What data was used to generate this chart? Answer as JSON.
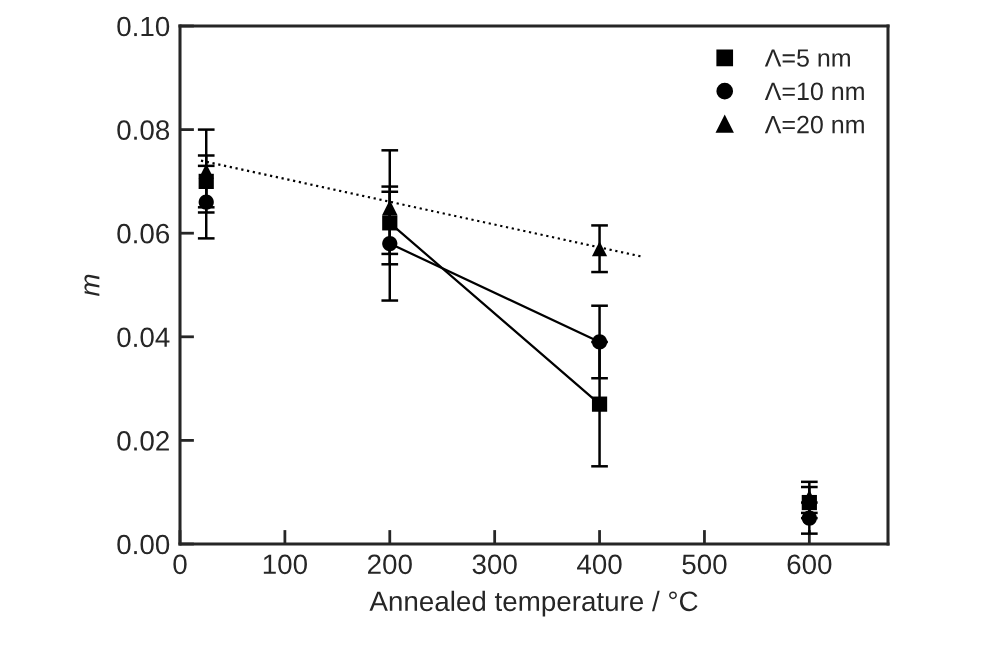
{
  "chart_data": {
    "type": "scatter",
    "xlabel": "Annealed temperature / °C",
    "ylabel": "m",
    "xlim": [
      0,
      675
    ],
    "ylim": [
      0,
      0.1
    ],
    "xticks": [
      0,
      100,
      200,
      300,
      400,
      500,
      600
    ],
    "yticks": [
      {
        "value": 0,
        "label": "0.00"
      },
      {
        "value": 0.02,
        "label": "0.02"
      },
      {
        "value": 0.04,
        "label": "0.04"
      },
      {
        "value": 0.06,
        "label": "0.06"
      },
      {
        "value": 0.08,
        "label": "0.08"
      },
      {
        "value": 0.1,
        "label": "0.10"
      }
    ],
    "grid": false,
    "legend": "top right",
    "series": [
      {
        "name": "Λ=5 nm",
        "marker": "square",
        "color": "#000000",
        "x": [
          25,
          200,
          400,
          600
        ],
        "values": [
          0.07,
          0.062,
          0.027,
          0.008
        ],
        "errors": [
          0.005,
          0.006,
          0.012,
          0.003
        ]
      },
      {
        "name": "Λ=10 nm",
        "marker": "circle",
        "color": "#000000",
        "x": [
          25,
          200,
          400,
          600
        ],
        "values": [
          0.066,
          0.058,
          0.039,
          0.005
        ],
        "errors": [
          0.007,
          0.011,
          0.007,
          0.003
        ]
      },
      {
        "name": "Λ=20 nm",
        "marker": "triangle",
        "color": "#000000",
        "x": [
          25,
          200,
          400,
          600
        ],
        "values": [
          0.072,
          0.065,
          0.057,
          0.009
        ],
        "errors": [
          0.008,
          0.011,
          0.0045,
          0.003
        ]
      },
      {
        "type": "line",
        "line_style": "solid",
        "color": "#000000",
        "x": [
          200,
          400
        ],
        "values": [
          0.062,
          0.027
        ]
      },
      {
        "type": "line",
        "line_style": "solid",
        "color": "#000000",
        "x": [
          200,
          400
        ],
        "values": [
          0.058,
          0.039
        ]
      },
      {
        "type": "line",
        "line_style": "dotted",
        "color": "#000000",
        "x": [
          20,
          440
        ],
        "values": [
          0.074,
          0.0555
        ]
      }
    ]
  }
}
